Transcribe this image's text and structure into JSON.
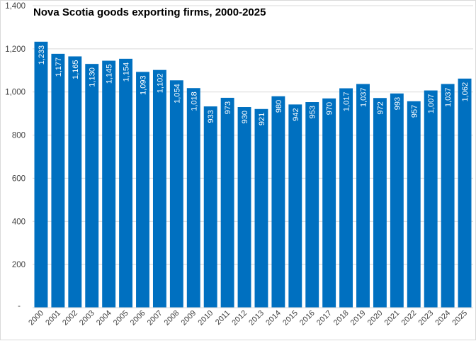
{
  "chart_data": {
    "type": "bar",
    "title": "Nova Scotia goods exporting firms, 2000-2025",
    "xlabel": "",
    "ylabel": "",
    "categories": [
      "2000",
      "2001",
      "2002",
      "2003",
      "2004",
      "2005",
      "2006",
      "2007",
      "2008",
      "2009",
      "2010",
      "2011",
      "2012",
      "2013",
      "2014",
      "2015",
      "2016",
      "2017",
      "2018",
      "2019",
      "2020",
      "2021",
      "2022",
      "2023",
      "2024",
      "2025"
    ],
    "values": [
      1233,
      1177,
      1165,
      1130,
      1145,
      1154,
      1093,
      1102,
      1054,
      1018,
      933,
      973,
      930,
      921,
      980,
      942,
      953,
      970,
      1017,
      1037,
      972,
      993,
      957,
      1007,
      1037,
      1062
    ],
    "data_labels": [
      "1,233",
      "1,177",
      "1,165",
      "1,130",
      "1,145",
      "1,154",
      "1,093",
      "1,102",
      "1,054",
      "1,018",
      "933",
      "973",
      "930",
      "921",
      "980",
      "942",
      "953",
      "970",
      "1,017",
      "1,037",
      "972",
      "993",
      "957",
      "1,007",
      "1,037",
      "1,062"
    ],
    "ylim": [
      0,
      1400
    ],
    "yticks": [
      0,
      200,
      400,
      600,
      800,
      1000,
      1200,
      1400
    ],
    "ytick_labels": [
      "-",
      "200",
      "400",
      "600",
      "800",
      "1,000",
      "1,200",
      "1,400"
    ],
    "grid": true,
    "legend": "none",
    "bar_color": "#0070c0",
    "label_color": "#ffffff",
    "grid_color": "#d9d9d9"
  }
}
